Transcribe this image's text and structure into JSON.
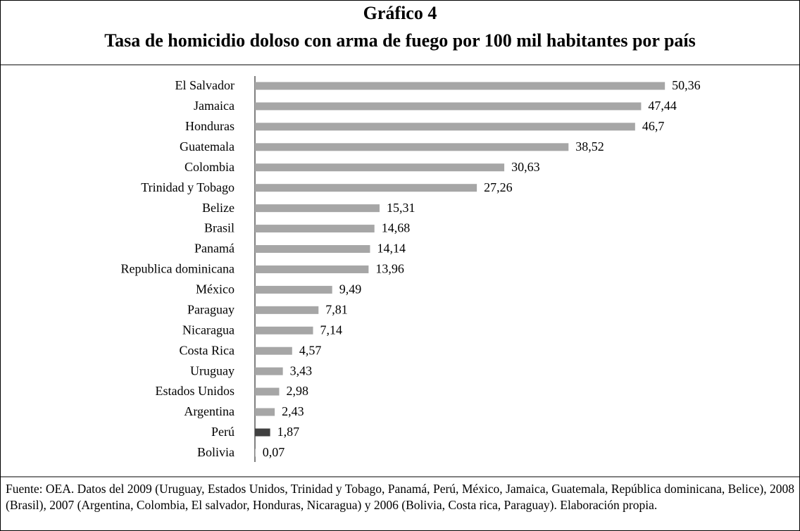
{
  "chart_data": {
    "type": "bar",
    "orientation": "horizontal",
    "title": "Gráfico 4",
    "subtitle": "Tasa de homicidio doloso con arma de fuego por 100 mil habitantes por país",
    "categories": [
      "El Salvador",
      "Jamaica",
      "Honduras",
      "Guatemala",
      "Colombia",
      "Trinidad y Tobago",
      "Belize",
      "Brasil",
      "Panamá",
      "Republica dominicana",
      "México",
      "Paraguay",
      "Nicaragua",
      "Costa Rica",
      "Uruguay",
      "Estados Unidos",
      "Argentina",
      "Perú",
      "Bolivia"
    ],
    "values": [
      50.36,
      47.44,
      46.7,
      38.52,
      30.63,
      27.26,
      15.31,
      14.68,
      14.14,
      13.96,
      9.49,
      7.81,
      7.14,
      4.57,
      3.43,
      2.98,
      2.43,
      1.87,
      0.07
    ],
    "value_labels": [
      "50,36",
      "47,44",
      "46,7",
      "38,52",
      "30,63",
      "27,26",
      "15,31",
      "14,68",
      "14,14",
      "13,96",
      "9,49",
      "7,81",
      "7,14",
      "4,57",
      "3,43",
      "2,98",
      "2,43",
      "1,87",
      "0,07"
    ],
    "colors": [
      "#a6a6a6",
      "#a6a6a6",
      "#a6a6a6",
      "#a6a6a6",
      "#a6a6a6",
      "#a6a6a6",
      "#a6a6a6",
      "#a6a6a6",
      "#a6a6a6",
      "#a6a6a6",
      "#a6a6a6",
      "#a6a6a6",
      "#a6a6a6",
      "#a6a6a6",
      "#a6a6a6",
      "#a6a6a6",
      "#a6a6a6",
      "#404040",
      "#a6a6a6"
    ],
    "xlim": [
      0,
      60
    ],
    "note": "Fuente: OEA. Datos del 2009 (Uruguay, Estados Unidos, Trinidad y Tobago, Panamá, Perú, México, Jamaica, Guatemala, República dominicana, Belice), 2008 (Brasil), 2007 (Argentina, Colombia, El salvador, Honduras, Nicaragua) y 2006 (Bolivia, Costa rica, Paraguay). Elaboración propia."
  }
}
